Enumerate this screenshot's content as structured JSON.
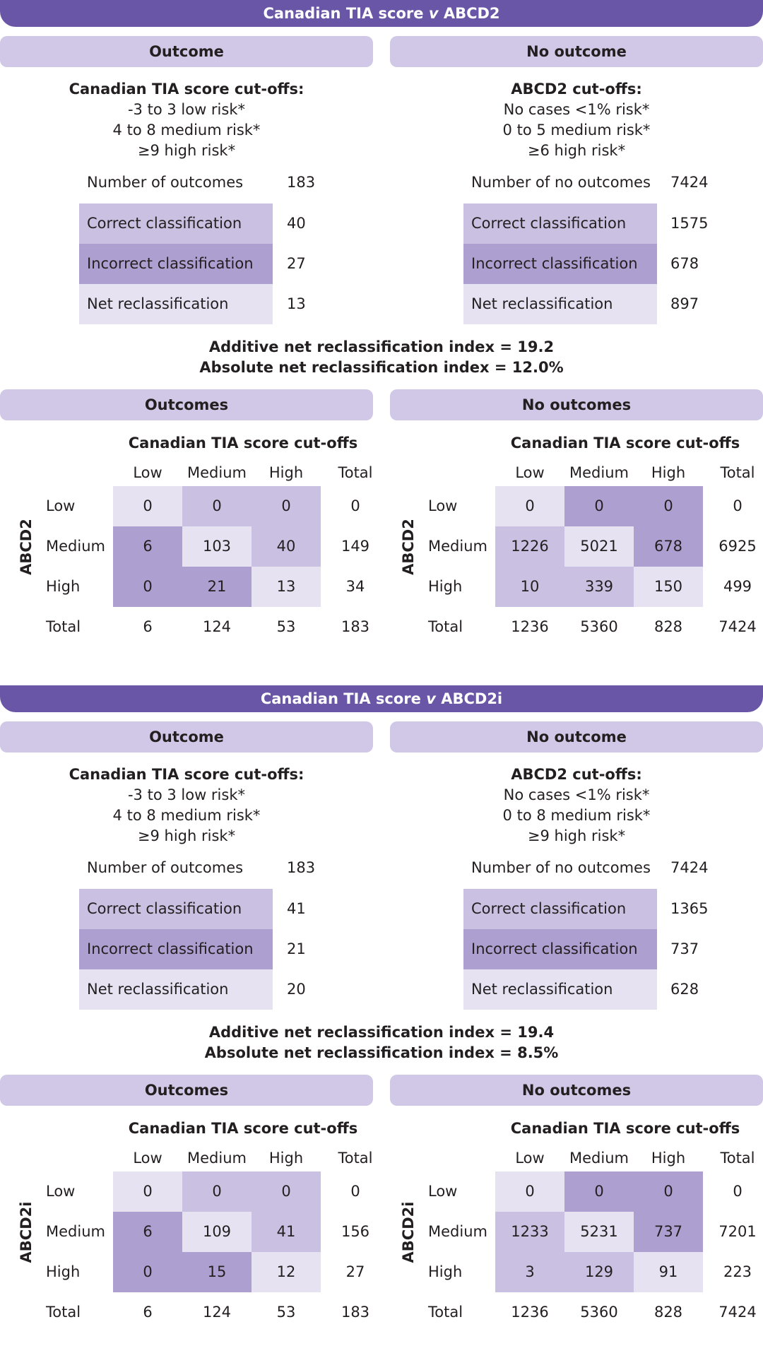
{
  "sections": [
    {
      "title_pre": "Canadian TIA score ",
      "title_v": "v",
      "title_post": " ABCD2",
      "outcome_head": "Outcome",
      "no_outcome_head": "No outcome",
      "left": {
        "title": "Canadian TIA score cut-offs:",
        "lines": [
          "-3 to 3 low risk*",
          "4 to 8 medium risk*",
          "≥9 high risk*"
        ],
        "count_label": "Number of outcomes",
        "count": "183",
        "correct_label": "Correct classification",
        "correct": "40",
        "incorrect_label": "Incorrect classification",
        "incorrect": "27",
        "net_label": "Net reclassification",
        "net": "13"
      },
      "right": {
        "title": "ABCD2 cut-offs:",
        "lines": [
          "No cases <1% risk*",
          "0 to 5 medium risk*",
          "≥6 high risk*"
        ],
        "count_label": "Number of no outcomes",
        "count": "7424",
        "correct_label": "Correct classification",
        "correct": "1575",
        "incorrect_label": "Incorrect classification",
        "incorrect": "678",
        "net_label": "Net reclassification",
        "net": "897"
      },
      "index1": "Additive net reclassification index = 19.2",
      "index2": "Absolute net reclassification index = 12.0%",
      "outcomes_head": "Outcomes",
      "no_outcomes_head": "No outcomes",
      "row_var": "ABCD2",
      "tables": [
        {
          "title": "Canadian TIA score cut-offs",
          "cols": [
            "Low",
            "Medium",
            "High",
            "Total"
          ],
          "rows": [
            {
              "label": "Low",
              "cells": [
                "0",
                "0",
                "0"
              ],
              "shade": [
                "light",
                "mid",
                "mid"
              ],
              "total": "0"
            },
            {
              "label": "Medium",
              "cells": [
                "6",
                "103",
                "40"
              ],
              "shade": [
                "dark",
                "light",
                "mid"
              ],
              "total": "149"
            },
            {
              "label": "High",
              "cells": [
                "0",
                "21",
                "13"
              ],
              "shade": [
                "dark",
                "dark",
                "light"
              ],
              "total": "34"
            }
          ],
          "total_label": "Total",
          "totals": [
            "6",
            "124",
            "53",
            "183"
          ]
        },
        {
          "title": "Canadian TIA score cut-offs",
          "cols": [
            "Low",
            "Medium",
            "High",
            "Total"
          ],
          "rows": [
            {
              "label": "Low",
              "cells": [
                "0",
                "0",
                "0"
              ],
              "shade": [
                "light",
                "dark",
                "dark"
              ],
              "total": "0"
            },
            {
              "label": "Medium",
              "cells": [
                "1226",
                "5021",
                "678"
              ],
              "shade": [
                "mid",
                "light",
                "dark"
              ],
              "total": "6925"
            },
            {
              "label": "High",
              "cells": [
                "10",
                "339",
                "150"
              ],
              "shade": [
                "mid",
                "mid",
                "light"
              ],
              "total": "499"
            }
          ],
          "total_label": "Total",
          "totals": [
            "1236",
            "5360",
            "828",
            "7424"
          ]
        }
      ]
    },
    {
      "title_pre": "Canadian TIA score ",
      "title_v": "v",
      "title_post": " ABCD2i",
      "outcome_head": "Outcome",
      "no_outcome_head": "No outcome",
      "left": {
        "title": "Canadian TIA score cut-offs:",
        "lines": [
          "-3 to 3 low risk*",
          "4 to 8 medium risk*",
          "≥9 high risk*"
        ],
        "count_label": "Number of outcomes",
        "count": "183",
        "correct_label": "Correct classification",
        "correct": "41",
        "incorrect_label": "Incorrect classification",
        "incorrect": "21",
        "net_label": "Net reclassification",
        "net": "20"
      },
      "right": {
        "title": "ABCD2 cut-offs:",
        "lines": [
          "No cases <1% risk*",
          "0 to 8 medium risk*",
          "≥9 high risk*"
        ],
        "count_label": "Number of no outcomes",
        "count": "7424",
        "correct_label": "Correct classification",
        "correct": "1365",
        "incorrect_label": "Incorrect classification",
        "incorrect": "737",
        "net_label": "Net reclassification",
        "net": "628"
      },
      "index1": "Additive net reclassification index = 19.4",
      "index2": "Absolute net reclassification index = 8.5%",
      "outcomes_head": "Outcomes",
      "no_outcomes_head": "No outcomes",
      "row_var": "ABCD2i",
      "tables": [
        {
          "title": "Canadian TIA score cut-offs",
          "cols": [
            "Low",
            "Medium",
            "High",
            "Total"
          ],
          "rows": [
            {
              "label": "Low",
              "cells": [
                "0",
                "0",
                "0"
              ],
              "shade": [
                "light",
                "mid",
                "mid"
              ],
              "total": "0"
            },
            {
              "label": "Medium",
              "cells": [
                "6",
                "109",
                "41"
              ],
              "shade": [
                "dark",
                "light",
                "mid"
              ],
              "total": "156"
            },
            {
              "label": "High",
              "cells": [
                "0",
                "15",
                "12"
              ],
              "shade": [
                "dark",
                "dark",
                "light"
              ],
              "total": "27"
            }
          ],
          "total_label": "Total",
          "totals": [
            "6",
            "124",
            "53",
            "183"
          ]
        },
        {
          "title": "Canadian TIA score cut-offs",
          "cols": [
            "Low",
            "Medium",
            "High",
            "Total"
          ],
          "rows": [
            {
              "label": "Low",
              "cells": [
                "0",
                "0",
                "0"
              ],
              "shade": [
                "light",
                "dark",
                "dark"
              ],
              "total": "0"
            },
            {
              "label": "Medium",
              "cells": [
                "1233",
                "5231",
                "737"
              ],
              "shade": [
                "mid",
                "light",
                "dark"
              ],
              "total": "7201"
            },
            {
              "label": "High",
              "cells": [
                "3",
                "129",
                "91"
              ],
              "shade": [
                "mid",
                "mid",
                "light"
              ],
              "total": "223"
            }
          ],
          "total_label": "Total",
          "totals": [
            "1236",
            "5360",
            "828",
            "7424"
          ]
        }
      ]
    }
  ],
  "colors": {
    "banner": "#6a56a6",
    "pill": "#d0c8e6",
    "dark": "#ad9fd0",
    "mid": "#cac1e2",
    "light": "#e6e2f2"
  }
}
